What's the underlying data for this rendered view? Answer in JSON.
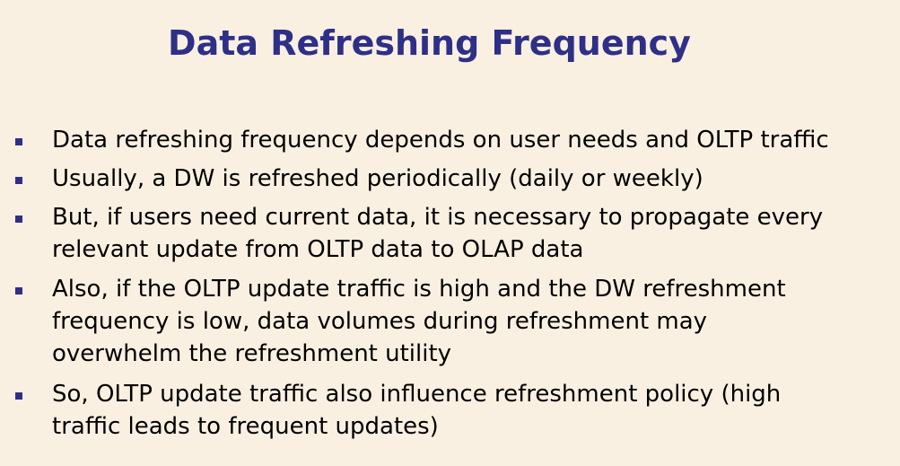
{
  "slide": {
    "title": "Data Refreshing Frequency",
    "bullets": [
      {
        "text": "Data refreshing frequency depends on user needs and OLTP traffic"
      },
      {
        "text": "Usually, a DW is refreshed periodically (daily or weekly)"
      },
      {
        "text": "But, if users need current data, it is necessary to propagate every\nrelevant update from OLTP data to OLAP data"
      },
      {
        "text": "Also, if the OLTP update traffic is high and the DW refreshment\nfrequency is low, data volumes during refreshment may\noverwhelm the refreshment utility"
      },
      {
        "text": "So, OLTP update traffic also influence refreshment policy (high\ntraffic leads to frequent updates)"
      }
    ],
    "colors": {
      "background": "#FAF0E2",
      "title": "#2E3087",
      "bullet_marker": "#2E3087",
      "text": "#000000"
    }
  }
}
